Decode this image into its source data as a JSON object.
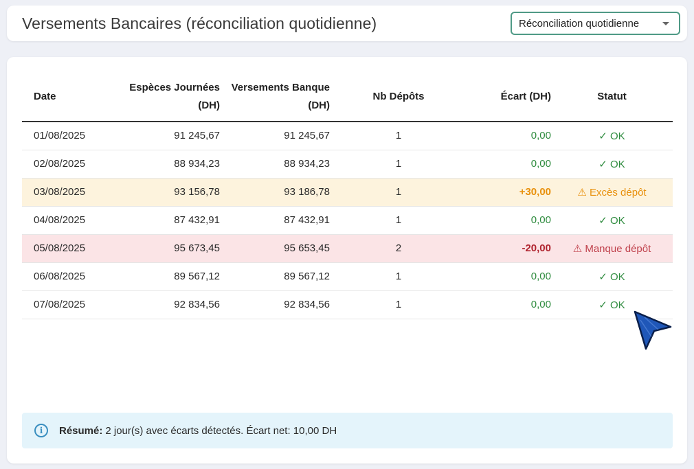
{
  "header": {
    "title": "Versements Bancaires (réconciliation quotidienne)",
    "mode_select": {
      "value": "Réconciliation quotidienne"
    }
  },
  "table": {
    "columns": {
      "date": "Date",
      "especes": "Espèces Journées (DH)",
      "versements": "Versements Banque (DH)",
      "nb_depots": "Nb Dépôts",
      "ecart": "Écart (DH)",
      "statut": "Statut"
    },
    "rows": [
      {
        "date": "01/08/2025",
        "especes": "91 245,67",
        "versements": "91 245,67",
        "nb_depots": "1",
        "ecart": "0,00",
        "statut": "✓ OK",
        "status_kind": "ok"
      },
      {
        "date": "02/08/2025",
        "especes": "88 934,23",
        "versements": "88 934,23",
        "nb_depots": "1",
        "ecart": "0,00",
        "statut": "✓ OK",
        "status_kind": "ok"
      },
      {
        "date": "03/08/2025",
        "especes": "93 156,78",
        "versements": "93 186,78",
        "nb_depots": "1",
        "ecart": "+30,00",
        "statut": "⚠ Excès dépôt",
        "status_kind": "excess"
      },
      {
        "date": "04/08/2025",
        "especes": "87 432,91",
        "versements": "87 432,91",
        "nb_depots": "1",
        "ecart": "0,00",
        "statut": "✓ OK",
        "status_kind": "ok"
      },
      {
        "date": "05/08/2025",
        "especes": "95 673,45",
        "versements": "95 653,45",
        "nb_depots": "2",
        "ecart": "-20,00",
        "statut": "⚠ Manque dépôt",
        "status_kind": "short"
      },
      {
        "date": "06/08/2025",
        "especes": "89 567,12",
        "versements": "89 567,12",
        "nb_depots": "1",
        "ecart": "0,00",
        "statut": "✓ OK",
        "status_kind": "ok"
      },
      {
        "date": "07/08/2025",
        "especes": "92 834,56",
        "versements": "92 834,56",
        "nb_depots": "1",
        "ecart": "0,00",
        "statut": "✓ OK",
        "status_kind": "ok"
      }
    ]
  },
  "summary": {
    "icon": "info-icon",
    "label": "Résumé:",
    "text": "2 jour(s) avec écarts détectés. Écart net: 10,00 DH"
  },
  "colors": {
    "ok": "#2e8b3e",
    "excess": "#e8900c",
    "short": "#b0242f",
    "accent": "#4f9a86"
  }
}
